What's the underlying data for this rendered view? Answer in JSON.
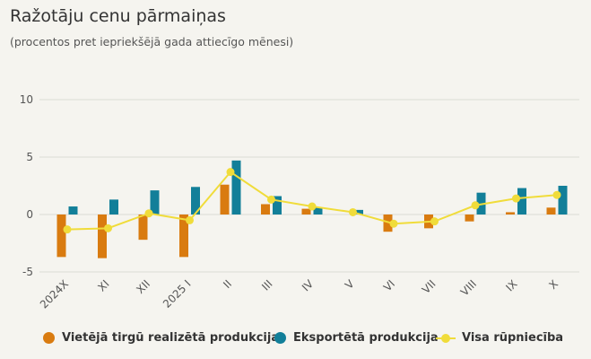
{
  "title": "Ražotāju cenu pārmaiņas",
  "subtitle": "(procentos pret iepriekšējā gada attiecīgo mēnesi)",
  "colors": {
    "domestic": "#d97b10",
    "export": "#127f99",
    "total": "#f0dc3a",
    "grid": "#dcdcd6",
    "axis_text": "#555555"
  },
  "chart_data": {
    "type": "bar+line",
    "categories": [
      "2024X",
      "XI",
      "XII",
      "2025 I",
      "II",
      "III",
      "IV",
      "V",
      "VI",
      "VII",
      "VIII",
      "IX",
      "X"
    ],
    "series": [
      {
        "name": "Vietējā tirgū realizētā produkcija",
        "type": "bar",
        "values": [
          -3.7,
          -3.8,
          -2.2,
          -3.7,
          2.6,
          0.9,
          0.5,
          0.0,
          -1.5,
          -1.2,
          -0.6,
          0.2,
          0.6
        ]
      },
      {
        "name": "Eksportētā produkcija",
        "type": "bar",
        "values": [
          0.7,
          1.3,
          2.1,
          2.4,
          4.7,
          1.6,
          0.6,
          0.4,
          0.0,
          0.0,
          1.9,
          2.3,
          2.5
        ]
      },
      {
        "name": "Visa rūpniecība",
        "type": "line",
        "values": [
          -1.3,
          -1.2,
          0.1,
          -0.5,
          3.7,
          1.3,
          0.7,
          0.2,
          -0.8,
          -0.6,
          0.8,
          1.4,
          1.7
        ]
      }
    ],
    "y_ticks": [
      10,
      5,
      0,
      -5
    ],
    "ylim": [
      -5,
      10
    ],
    "grid": true,
    "legend": "bottom"
  }
}
